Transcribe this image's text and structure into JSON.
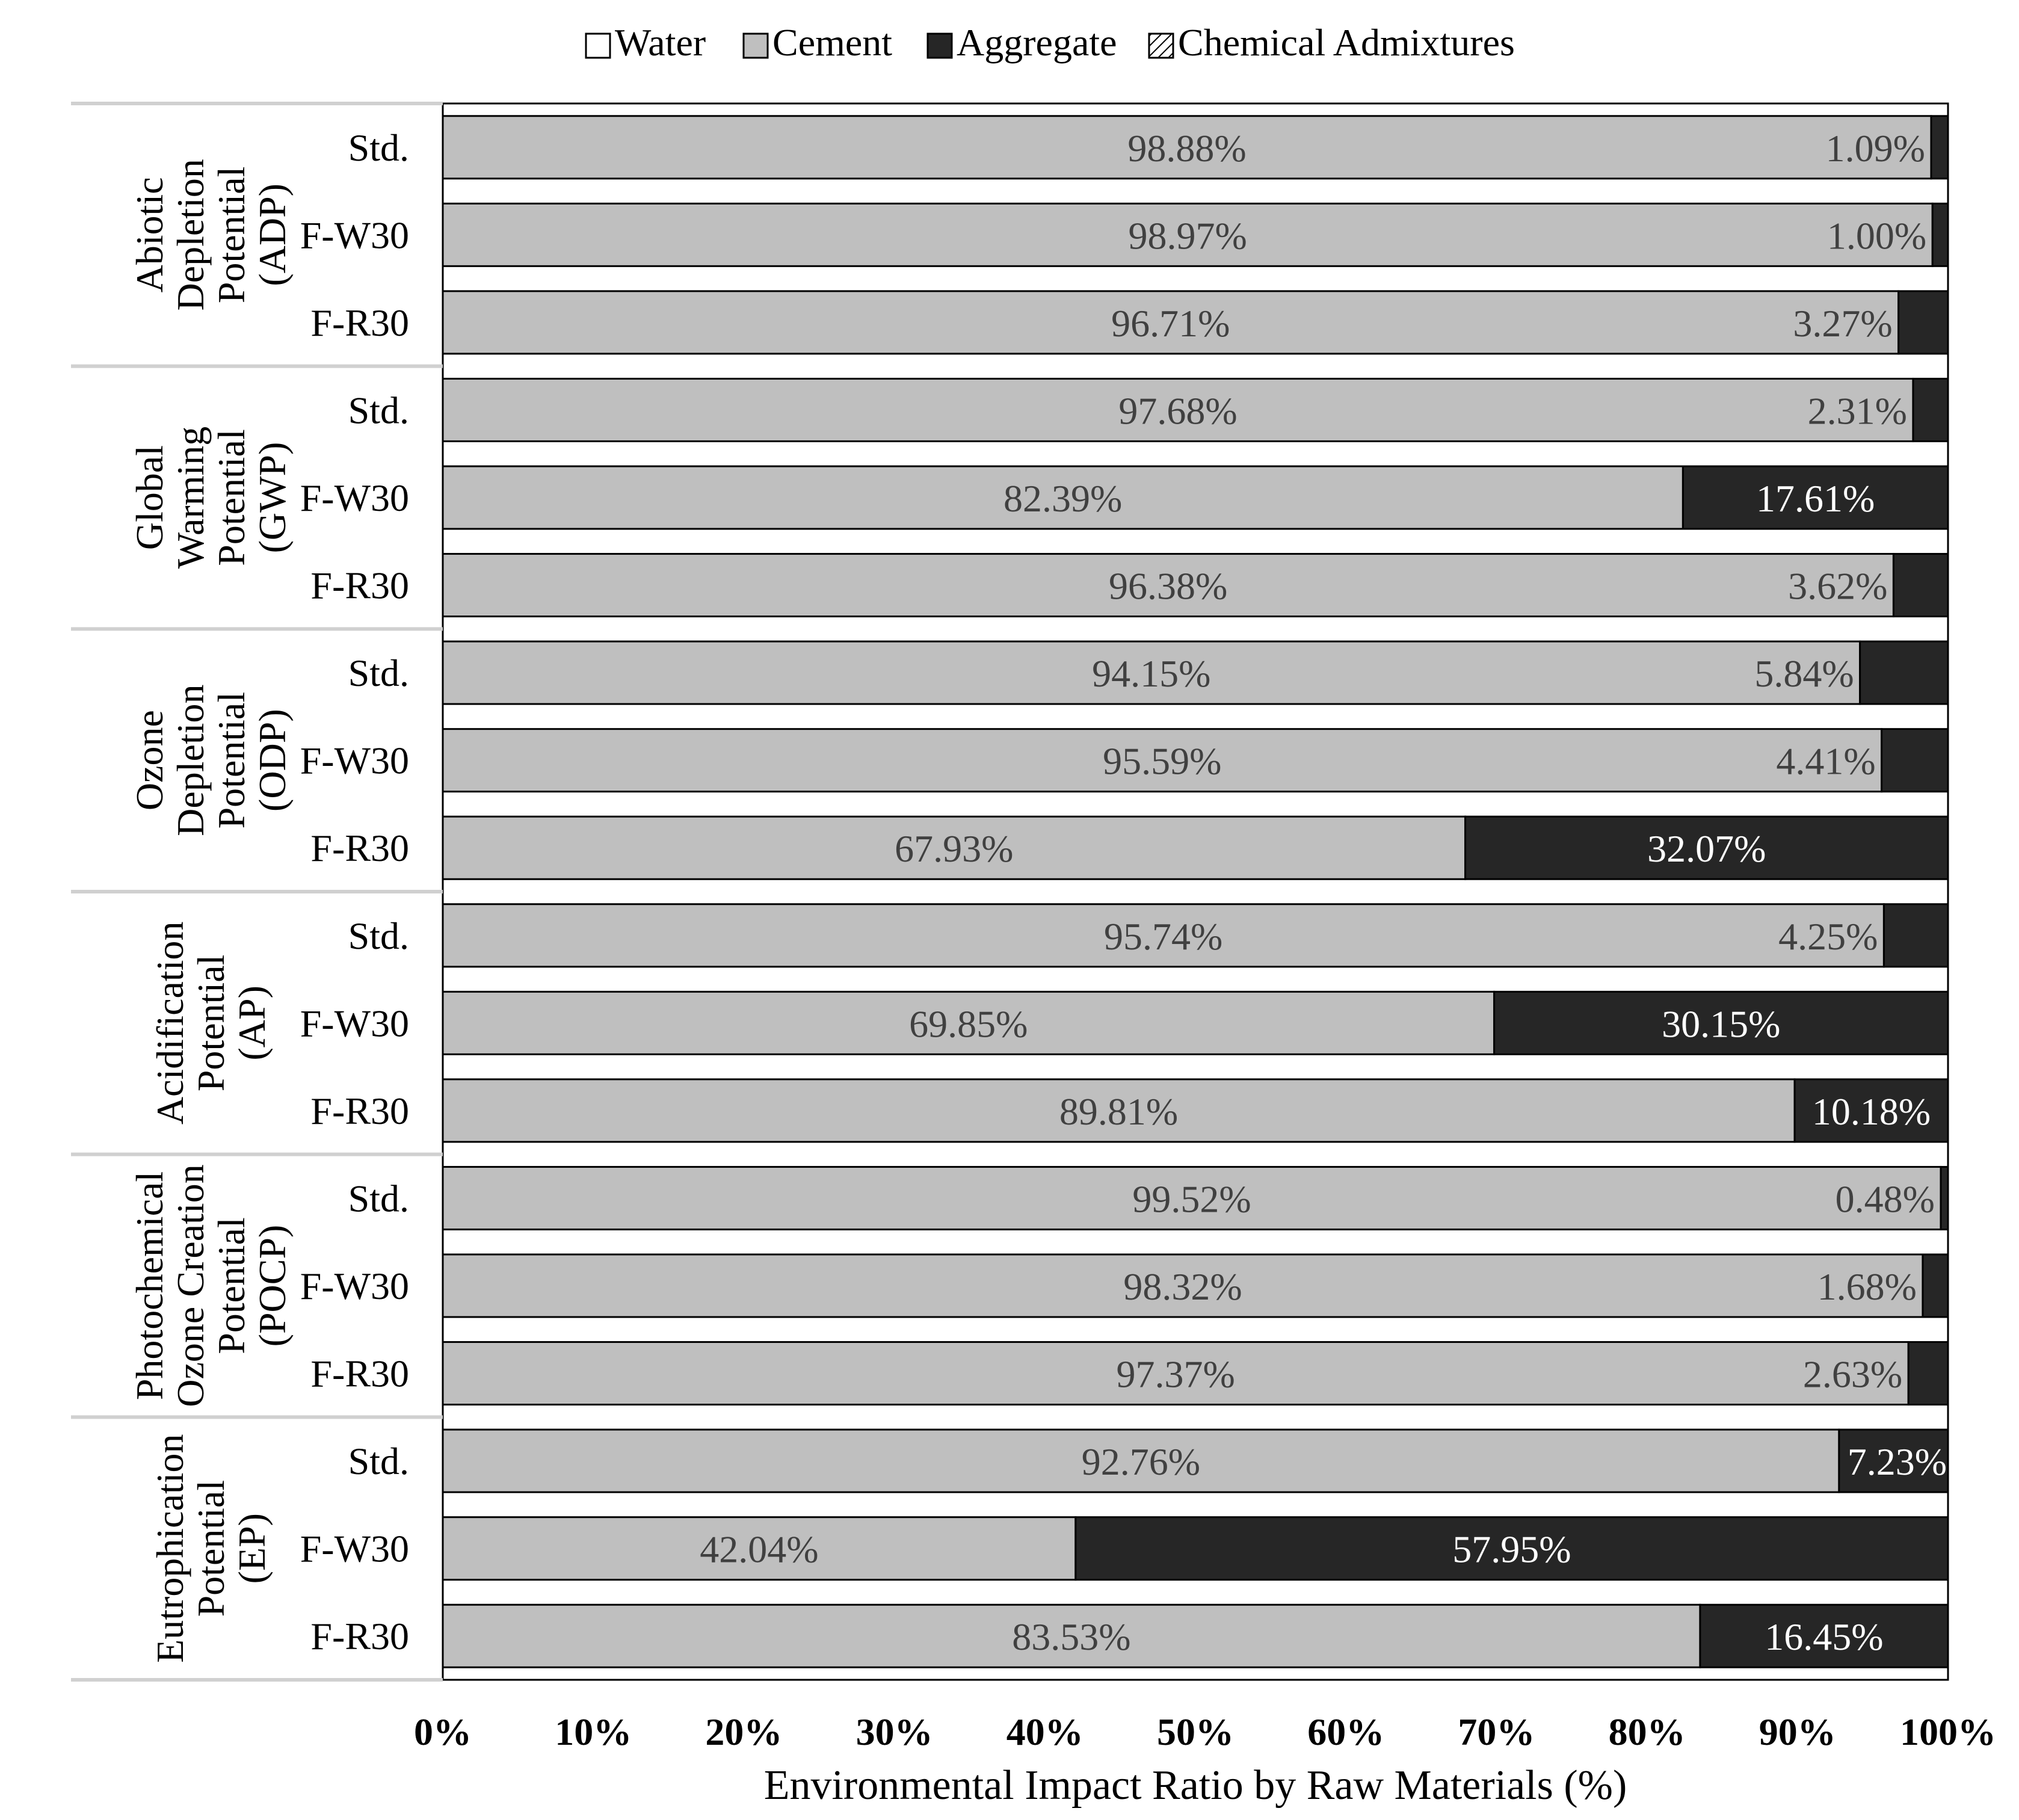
{
  "chart_data": {
    "type": "bar",
    "orientation": "horizontal",
    "stacked": true,
    "title": "",
    "xlabel": "Environmental Impact Ratio by Raw Materials (%)",
    "ylabel": "",
    "xlim": [
      0,
      100
    ],
    "x_ticks": [
      "0%",
      "10%",
      "20%",
      "30%",
      "40%",
      "50%",
      "60%",
      "70%",
      "80%",
      "90%",
      "100%"
    ],
    "grid": false,
    "legend_position": "top-center",
    "legend": [
      {
        "name": "Water",
        "color": "#ffffff",
        "pattern": "none"
      },
      {
        "name": "Cement",
        "color": "#bfbfbf",
        "pattern": "none"
      },
      {
        "name": "Aggregate",
        "color": "#262626",
        "pattern": "none"
      },
      {
        "name": "Chemical Admixtures",
        "color": "#ffffff",
        "pattern": "hatch"
      }
    ],
    "series_colors": {
      "Cement": "#bfbfbf",
      "Aggregate": "#262626",
      "Water": "#ffffff"
    },
    "groups": [
      {
        "lines": [
          "Abiotic",
          "Depletion",
          "Potential",
          "(ADP)"
        ],
        "bars": [
          {
            "label": "Std.",
            "cement": 98.88,
            "aggregate": 1.09,
            "cement_label": "98.88%",
            "aggregate_label": "1.09%"
          },
          {
            "label": "F-W30",
            "cement": 98.97,
            "aggregate": 1.0,
            "cement_label": "98.97%",
            "aggregate_label": "1.00%"
          },
          {
            "label": "F-R30",
            "cement": 96.71,
            "aggregate": 3.27,
            "cement_label": "96.71%",
            "aggregate_label": "3.27%"
          }
        ]
      },
      {
        "lines": [
          "Global",
          "Warming",
          "Potential",
          "(GWP)"
        ],
        "bars": [
          {
            "label": "Std.",
            "cement": 97.68,
            "aggregate": 2.31,
            "cement_label": "97.68%",
            "aggregate_label": "2.31%"
          },
          {
            "label": "F-W30",
            "cement": 82.39,
            "aggregate": 17.61,
            "cement_label": "82.39%",
            "aggregate_label": "17.61%"
          },
          {
            "label": "F-R30",
            "cement": 96.38,
            "aggregate": 3.62,
            "cement_label": "96.38%",
            "aggregate_label": "3.62%"
          }
        ]
      },
      {
        "lines": [
          "Ozone",
          "Depletion",
          "Potential",
          "(ODP)"
        ],
        "bars": [
          {
            "label": "Std.",
            "cement": 94.15,
            "aggregate": 5.84,
            "cement_label": "94.15%",
            "aggregate_label": "5.84%"
          },
          {
            "label": "F-W30",
            "cement": 95.59,
            "aggregate": 4.41,
            "cement_label": "95.59%",
            "aggregate_label": "4.41%"
          },
          {
            "label": "F-R30",
            "cement": 67.93,
            "aggregate": 32.07,
            "cement_label": "67.93%",
            "aggregate_label": "32.07%"
          }
        ]
      },
      {
        "lines": [
          "Acidification",
          "Potential",
          "(AP)"
        ],
        "bars": [
          {
            "label": "Std.",
            "cement": 95.74,
            "aggregate": 4.25,
            "cement_label": "95.74%",
            "aggregate_label": "4.25%"
          },
          {
            "label": "F-W30",
            "cement": 69.85,
            "aggregate": 30.15,
            "cement_label": "69.85%",
            "aggregate_label": "30.15%"
          },
          {
            "label": "F-R30",
            "cement": 89.81,
            "aggregate": 10.18,
            "cement_label": "89.81%",
            "aggregate_label": "10.18%"
          }
        ]
      },
      {
        "lines": [
          "Photochemical",
          "Ozone Creation",
          "Potential",
          "(POCP)"
        ],
        "bars": [
          {
            "label": "Std.",
            "cement": 99.52,
            "aggregate": 0.48,
            "cement_label": "99.52%",
            "aggregate_label": "0.48%"
          },
          {
            "label": "F-W30",
            "cement": 98.32,
            "aggregate": 1.68,
            "cement_label": "98.32%",
            "aggregate_label": "1.68%"
          },
          {
            "label": "F-R30",
            "cement": 97.37,
            "aggregate": 2.63,
            "cement_label": "97.37%",
            "aggregate_label": "2.63%"
          }
        ]
      },
      {
        "lines": [
          "Eutrophication",
          "Potential",
          "(EP)"
        ],
        "bars": [
          {
            "label": "Std.",
            "cement": 92.76,
            "aggregate": 7.23,
            "cement_label": "92.76%",
            "aggregate_label": "7.23%"
          },
          {
            "label": "F-W30",
            "cement": 42.04,
            "aggregate": 57.95,
            "cement_label": "42.04%",
            "aggregate_label": "57.95%"
          },
          {
            "label": "F-R30",
            "cement": 83.53,
            "aggregate": 16.45,
            "cement_label": "83.53%",
            "aggregate_label": "16.45%"
          }
        ]
      }
    ]
  }
}
